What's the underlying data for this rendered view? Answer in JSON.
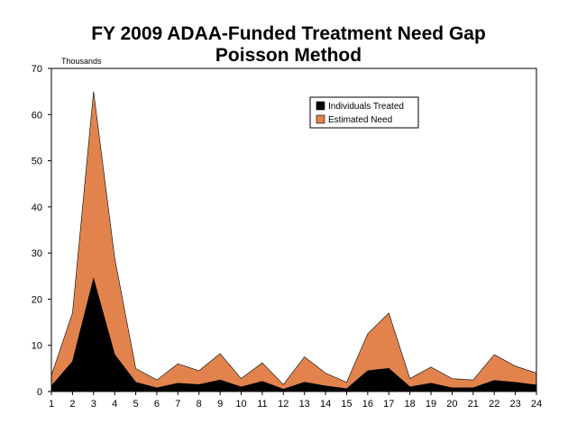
{
  "chart_data": {
    "type": "area",
    "title": "FY 2009 ADAA-Funded Treatment Need Gap",
    "subtitle": "Poisson Method",
    "ylabel": "Thousands",
    "xlabel": "",
    "x": [
      1,
      2,
      3,
      4,
      5,
      6,
      7,
      8,
      9,
      10,
      11,
      12,
      13,
      14,
      15,
      16,
      17,
      18,
      19,
      20,
      21,
      22,
      23,
      24
    ],
    "ylim": [
      0,
      70
    ],
    "yticks": [
      0,
      10,
      20,
      30,
      40,
      50,
      60,
      70
    ],
    "grid": false,
    "legend_position": "top-right",
    "series": [
      {
        "name": "Individuals Treated",
        "color": "#000000",
        "values": [
          1.2,
          6.5,
          24.5,
          8.0,
          2.0,
          0.8,
          1.8,
          1.5,
          2.5,
          1.0,
          2.2,
          0.5,
          2.0,
          1.2,
          0.6,
          4.5,
          5.0,
          1.0,
          1.8,
          0.8,
          0.8,
          2.4,
          2.0,
          1.4
        ]
      },
      {
        "name": "Estimated Need",
        "color": "#e2834e",
        "values": [
          3.5,
          17.0,
          65.0,
          29.0,
          5.0,
          2.5,
          6.0,
          4.5,
          8.2,
          2.8,
          6.2,
          1.5,
          7.5,
          4.0,
          2.0,
          12.5,
          17.0,
          2.8,
          5.3,
          2.8,
          2.5,
          8.0,
          5.5,
          4.0
        ]
      }
    ]
  }
}
